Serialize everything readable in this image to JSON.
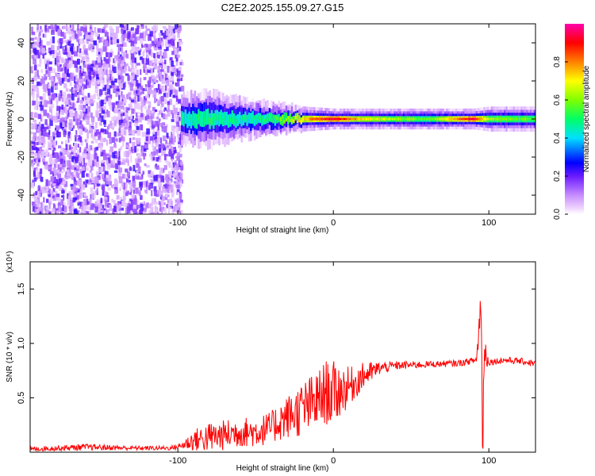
{
  "title": "C2E2.2025.155.09.27.G15",
  "colorbar": {
    "label": "Normalized spectral amplitude",
    "ticks": [
      "0.0",
      "0.2",
      "0.4",
      "0.6",
      "0.8"
    ],
    "tick_values": [
      0,
      0.2,
      0.4,
      0.6,
      0.8
    ],
    "range": [
      0,
      1
    ]
  },
  "chart_data": [
    {
      "type": "heatmap",
      "title": "C2E2.2025.155.09.27.G15",
      "xlabel": "Height of straight line (km)",
      "ylabel": "Frequency (Hz)",
      "xlim": [
        -195,
        130
      ],
      "ylim": [
        -50,
        50
      ],
      "x_ticks": [
        -100,
        0,
        100
      ],
      "y_ticks": [
        -40,
        -20,
        0,
        20,
        40
      ],
      "grid": false,
      "noise_region_x": [
        -195,
        -98
      ],
      "signal_band": {
        "center_freq_hz": 0,
        "spread_hz": [
          [
            -100,
            6
          ],
          [
            -80,
            7
          ],
          [
            -60,
            5
          ],
          [
            -40,
            4
          ],
          [
            -20,
            3
          ],
          [
            0,
            2.5
          ],
          [
            20,
            2.5
          ],
          [
            60,
            2.5
          ],
          [
            90,
            2.5
          ],
          [
            100,
            3
          ],
          [
            130,
            3
          ]
        ],
        "peak_amplitude": [
          [
            -100,
            0.45
          ],
          [
            -80,
            0.5
          ],
          [
            -60,
            0.45
          ],
          [
            -40,
            0.5
          ],
          [
            -20,
            0.75
          ],
          [
            0,
            0.95
          ],
          [
            20,
            0.7
          ],
          [
            60,
            0.55
          ],
          [
            90,
            0.95
          ],
          [
            100,
            0.6
          ],
          [
            130,
            0.55
          ]
        ]
      }
    },
    {
      "type": "line",
      "xlabel": "Height of straight line (km)",
      "ylabel": "SNR (10 * v/v)",
      "y_multiplier": "(x10⁴)",
      "xlim": [
        -195,
        130
      ],
      "ylim": [
        0,
        1.75
      ],
      "x_ticks": [
        -100,
        0,
        100
      ],
      "y_ticks": [
        0.5,
        1.0,
        1.5
      ],
      "y_tick_labels": [
        "0.5",
        "1.0",
        "1.5"
      ],
      "grid": false,
      "series": [
        {
          "color": "#ff0000",
          "x": [
            -195,
            -160,
            -130,
            -105,
            -98,
            -90,
            -80,
            -70,
            -60,
            -50,
            -40,
            -35,
            -25,
            -20,
            -10,
            -5,
            0,
            10,
            20,
            30,
            40,
            60,
            80,
            92,
            95,
            96,
            97,
            100,
            110,
            120,
            130
          ],
          "y": [
            0.03,
            0.05,
            0.04,
            0.04,
            0.06,
            0.12,
            0.15,
            0.17,
            0.2,
            0.2,
            0.24,
            0.3,
            0.38,
            0.42,
            0.5,
            0.58,
            0.57,
            0.62,
            0.72,
            0.78,
            0.8,
            0.81,
            0.82,
            0.85,
            1.4,
            0.1,
            0.95,
            0.83,
            0.85,
            0.84,
            0.82
          ],
          "noise_amplitude": [
            0.02,
            0.03,
            0.02,
            0.02,
            0.03,
            0.1,
            0.14,
            0.14,
            0.14,
            0.14,
            0.15,
            0.18,
            0.22,
            0.26,
            0.28,
            0.3,
            0.3,
            0.18,
            0.12,
            0.06,
            0.04,
            0.03,
            0.03,
            0.03,
            0.3,
            0.3,
            0.2,
            0.03,
            0.03,
            0.03,
            0.03
          ]
        }
      ]
    }
  ]
}
